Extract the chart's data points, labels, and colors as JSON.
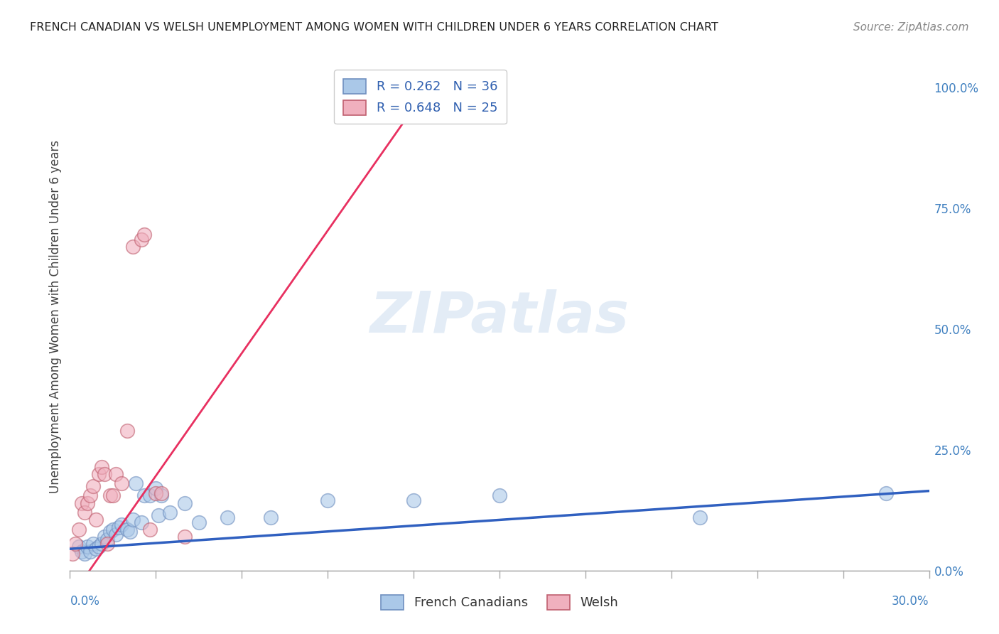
{
  "title": "FRENCH CANADIAN VS WELSH UNEMPLOYMENT AMONG WOMEN WITH CHILDREN UNDER 6 YEARS CORRELATION CHART",
  "source": "Source: ZipAtlas.com",
  "ylabel": "Unemployment Among Women with Children Under 6 years",
  "right_yticks": [
    "0.0%",
    "25.0%",
    "50.0%",
    "75.0%",
    "100.0%"
  ],
  "right_ytick_vals": [
    0.0,
    25.0,
    50.0,
    75.0,
    100.0
  ],
  "legend_blue": "R = 0.262   N = 36",
  "legend_pink": "R = 0.648   N = 25",
  "legend_label_blue": "French Canadians",
  "legend_label_pink": "Welsh",
  "blue_color": "#aac8e8",
  "pink_color": "#f0b0be",
  "blue_line_color": "#3060c0",
  "pink_line_color": "#e83060",
  "blue_scatter": [
    [
      0.3,
      5.0
    ],
    [
      0.4,
      4.0
    ],
    [
      0.5,
      3.5
    ],
    [
      0.6,
      5.0
    ],
    [
      0.7,
      4.0
    ],
    [
      0.8,
      5.5
    ],
    [
      0.9,
      4.5
    ],
    [
      1.0,
      5.0
    ],
    [
      1.1,
      5.5
    ],
    [
      1.2,
      7.0
    ],
    [
      1.3,
      6.5
    ],
    [
      1.4,
      8.0
    ],
    [
      1.5,
      8.5
    ],
    [
      1.6,
      7.5
    ],
    [
      1.7,
      9.0
    ],
    [
      1.8,
      9.5
    ],
    [
      2.0,
      8.5
    ],
    [
      2.1,
      8.0
    ],
    [
      2.2,
      10.5
    ],
    [
      2.3,
      18.0
    ],
    [
      2.5,
      10.0
    ],
    [
      2.6,
      15.5
    ],
    [
      2.8,
      15.5
    ],
    [
      3.0,
      17.0
    ],
    [
      3.1,
      11.5
    ],
    [
      3.2,
      15.5
    ],
    [
      3.5,
      12.0
    ],
    [
      4.0,
      14.0
    ],
    [
      4.5,
      10.0
    ],
    [
      5.5,
      11.0
    ],
    [
      7.0,
      11.0
    ],
    [
      9.0,
      14.5
    ],
    [
      12.0,
      14.5
    ],
    [
      15.0,
      15.5
    ],
    [
      22.0,
      11.0
    ],
    [
      28.5,
      16.0
    ]
  ],
  "pink_scatter": [
    [
      0.1,
      3.5
    ],
    [
      0.2,
      5.5
    ],
    [
      0.3,
      8.5
    ],
    [
      0.4,
      14.0
    ],
    [
      0.5,
      12.0
    ],
    [
      0.6,
      14.0
    ],
    [
      0.7,
      15.5
    ],
    [
      0.8,
      17.5
    ],
    [
      0.9,
      10.5
    ],
    [
      1.0,
      20.0
    ],
    [
      1.1,
      21.5
    ],
    [
      1.2,
      20.0
    ],
    [
      1.3,
      5.5
    ],
    [
      1.4,
      15.5
    ],
    [
      1.5,
      15.5
    ],
    [
      1.6,
      20.0
    ],
    [
      1.8,
      18.0
    ],
    [
      2.0,
      29.0
    ],
    [
      2.2,
      67.0
    ],
    [
      2.5,
      68.5
    ],
    [
      2.6,
      69.5
    ],
    [
      2.8,
      8.5
    ],
    [
      3.0,
      16.0
    ],
    [
      3.2,
      16.0
    ],
    [
      4.0,
      7.0
    ]
  ],
  "blue_line_pts": [
    [
      0.0,
      4.5
    ],
    [
      30.0,
      16.5
    ]
  ],
  "pink_line_pts": [
    [
      -0.5,
      -10.0
    ],
    [
      12.5,
      100.0
    ]
  ],
  "xlim": [
    0.0,
    30.0
  ],
  "ylim": [
    0.0,
    105.0
  ],
  "xtick_positions": [
    0.0,
    3.0,
    6.0,
    9.0,
    12.0,
    15.0,
    18.0,
    21.0,
    24.0,
    27.0,
    30.0
  ],
  "background_color": "#ffffff",
  "grid_color": "#e0e0e0"
}
